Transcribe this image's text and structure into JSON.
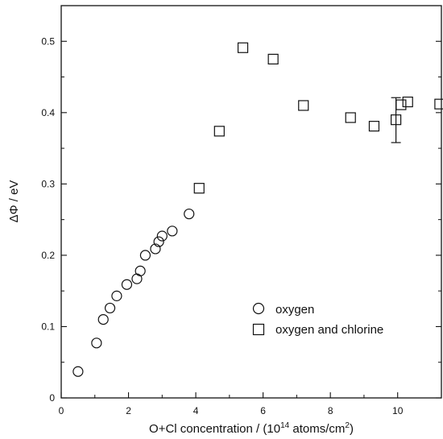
{
  "chart_data": {
    "type": "scatter",
    "xlabel": "O+Cl concentration / (10",
    "xlabel_sup": "14",
    "xlabel_mid": " atoms/cm",
    "xlabel_sup2": "2",
    "xlabel_end": ")",
    "ylabel": "ΔΦ / eV",
    "xlim": [
      0,
      11.3
    ],
    "ylim": [
      0,
      0.55
    ],
    "x_ticks": [
      0,
      2,
      4,
      6,
      8,
      10
    ],
    "y_ticks": [
      0,
      0.1,
      0.2,
      0.3,
      0.4,
      0.5
    ],
    "x_tick_labels": [
      "0",
      "2",
      "4",
      "6",
      "8",
      "10"
    ],
    "y_tick_labels": [
      "0",
      "0.1",
      "0.2",
      "0.3",
      "0.4",
      "0.5"
    ],
    "legend_position": "lower-right",
    "series": [
      {
        "name": "oxygen",
        "marker": "circle",
        "points": [
          [
            0.5,
            0.037
          ],
          [
            1.05,
            0.077
          ],
          [
            1.25,
            0.11
          ],
          [
            1.45,
            0.126
          ],
          [
            1.65,
            0.143
          ],
          [
            1.95,
            0.159
          ],
          [
            2.25,
            0.167
          ],
          [
            2.35,
            0.178
          ],
          [
            2.5,
            0.2
          ],
          [
            2.8,
            0.209
          ],
          [
            2.9,
            0.219
          ],
          [
            3.0,
            0.227
          ],
          [
            3.3,
            0.234
          ],
          [
            3.8,
            0.258
          ]
        ]
      },
      {
        "name": "oxygen and chlorine",
        "marker": "square",
        "points": [
          [
            4.1,
            0.294
          ],
          [
            4.7,
            0.374
          ],
          [
            5.4,
            0.491
          ],
          [
            6.3,
            0.475
          ],
          [
            7.2,
            0.41
          ],
          [
            8.6,
            0.393
          ],
          [
            9.3,
            0.381
          ],
          [
            9.95,
            0.39
          ],
          [
            10.1,
            0.411
          ],
          [
            10.3,
            0.415
          ],
          [
            11.25,
            0.412
          ]
        ]
      }
    ],
    "error_bars": [
      {
        "x": 9.95,
        "low": 0.358,
        "high": 0.421
      }
    ]
  }
}
